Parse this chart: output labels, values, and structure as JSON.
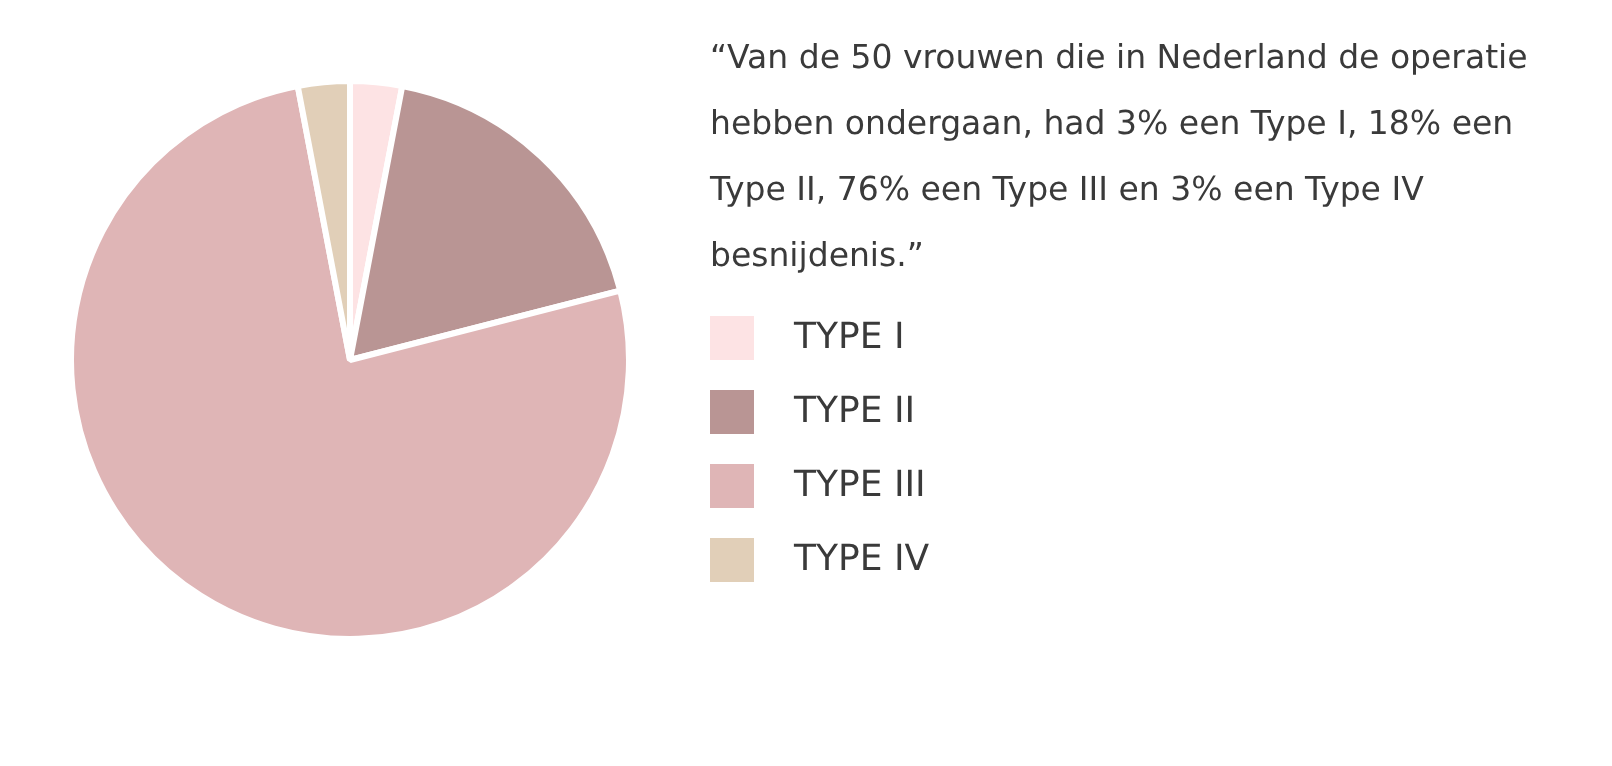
{
  "chart_data": {
    "type": "pie",
    "categories": [
      "TYPE I",
      "TYPE II",
      "TYPE III",
      "TYPE IV"
    ],
    "values": [
      3,
      18,
      76,
      3
    ],
    "colors": [
      "#fde3e4",
      "#b99594",
      "#dfb5b6",
      "#e1cfb8"
    ],
    "legend": "right",
    "annotations": [
      "“Van de 50 vrouwen die in Nederland de operatie hebben ondergaan, had 3% een Type I, 18% een Type II, 76% een Type III en 3% een Type IV besnijdenis.”"
    ]
  }
}
